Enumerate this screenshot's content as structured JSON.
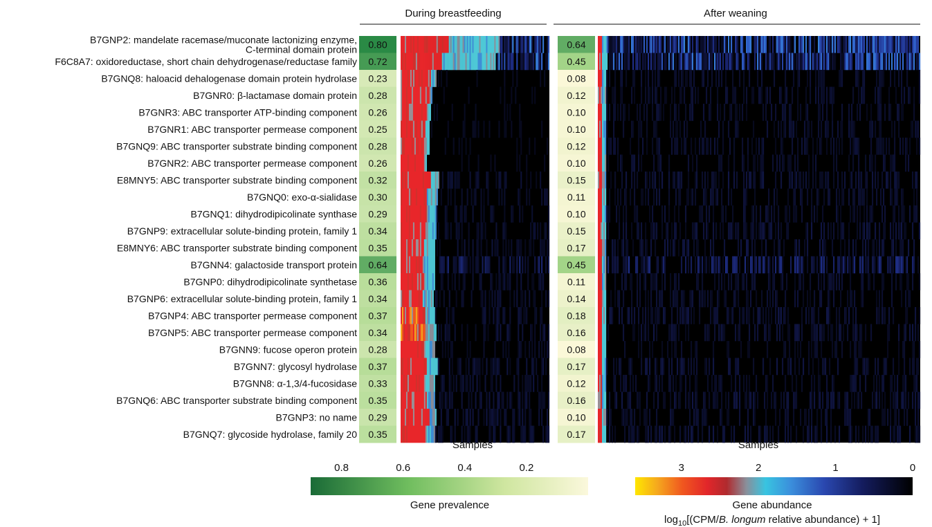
{
  "chart_data": {
    "type": "heatmap",
    "panels": [
      {
        "title": "During breastfeeding",
        "xlabel": "Samples"
      },
      {
        "title": "After weaning",
        "xlabel": "Samples"
      }
    ],
    "genes": [
      {
        "line1": "B7GNP2: mandelate racemase/muconate lactonizing enzyme,",
        "line2": "C-terminal domain protein"
      },
      {
        "line1": "F6C8A7: oxidoreductase, short chain dehydrogenase/reductase family"
      },
      {
        "line1": "B7GNQ8: haloacid dehalogenase domain protein hydrolase"
      },
      {
        "line1": "B7GNR0: β-lactamase domain protein"
      },
      {
        "line1": "B7GNR3: ABC transporter ATP-binding component"
      },
      {
        "line1": "B7GNR1: ABC transporter permease component"
      },
      {
        "line1": "B7GNQ9: ABC transporter substrate binding component"
      },
      {
        "line1": "B7GNR2: ABC transporter permease component"
      },
      {
        "line1": "E8MNY5: ABC transporter substrate binding component"
      },
      {
        "line1": "B7GNQ0: exo-α-sialidase"
      },
      {
        "line1": "B7GNQ1: dihydrodipicolinate synthase"
      },
      {
        "line1": "B7GNP9: extracellular solute-binding protein, family 1"
      },
      {
        "line1": "E8MNY6: ABC transporter substrate binding component"
      },
      {
        "line1": "B7GNN4: galactoside transport protein"
      },
      {
        "line1": "B7GNP0: dihydrodipicolinate synthetase"
      },
      {
        "line1": "B7GNP6: extracellular solute-binding protein, family 1"
      },
      {
        "line1": "B7GNP4: ABC transporter permease component"
      },
      {
        "line1": "B7GNP5: ABC transporter permease component"
      },
      {
        "line1": "B7GNN9: fucose operon protein"
      },
      {
        "line1": "B7GNN7: glycosyl hydrolase"
      },
      {
        "line1": "B7GNN8: α-1,3/4-fucosidase"
      },
      {
        "line1": "B7GNQ6: ABC transporter substrate binding component"
      },
      {
        "line1": "B7GNP3: no name"
      },
      {
        "line1": "B7GNQ7: glycoside hydrolase, family 20"
      }
    ],
    "prevalence_breastfeeding": [
      "0.80",
      "0.72",
      "0.23",
      "0.28",
      "0.26",
      "0.25",
      "0.28",
      "0.26",
      "0.32",
      "0.30",
      "0.29",
      "0.34",
      "0.35",
      "0.64",
      "0.36",
      "0.34",
      "0.37",
      "0.34",
      "0.28",
      "0.37",
      "0.33",
      "0.35",
      "0.29",
      "0.35"
    ],
    "prevalence_weaning": [
      "0.64",
      "0.45",
      "0.08",
      "0.12",
      "0.10",
      "0.10",
      "0.12",
      "0.10",
      "0.15",
      "0.11",
      "0.10",
      "0.15",
      "0.17",
      "0.45",
      "0.11",
      "0.14",
      "0.18",
      "0.16",
      "0.08",
      "0.17",
      "0.12",
      "0.16",
      "0.10",
      "0.17"
    ],
    "abundance_profile_breastfeeding": {
      "red_fraction": [
        0.32,
        0.28,
        0.2,
        0.19,
        0.18,
        0.17,
        0.17,
        0.16,
        0.2,
        0.18,
        0.18,
        0.17,
        0.16,
        0.15,
        0.16,
        0.15,
        0.17,
        0.17,
        0.17,
        0.18,
        0.17,
        0.18,
        0.19,
        0.17
      ],
      "cyan_fraction": [
        0.35,
        0.36,
        0.04,
        0.02,
        0.02,
        0.02,
        0.02,
        0.02,
        0.06,
        0.07,
        0.06,
        0.07,
        0.07,
        0.08,
        0.07,
        0.07,
        0.06,
        0.07,
        0.06,
        0.07,
        0.06,
        0.05,
        0.05,
        0.06
      ],
      "blue_level": [
        0.45,
        0.45,
        0.06,
        0.06,
        0.06,
        0.06,
        0.06,
        0.06,
        0.1,
        0.09,
        0.09,
        0.1,
        0.1,
        0.2,
        0.1,
        0.1,
        0.11,
        0.11,
        0.09,
        0.11,
        0.11,
        0.11,
        0.11,
        0.11
      ]
    },
    "abundance_profile_weaning": {
      "red_fraction": [
        0.012,
        0.012,
        0.012,
        0.012,
        0.012,
        0.012,
        0.012,
        0.012,
        0.012,
        0.012,
        0.012,
        0.012,
        0.012,
        0.012,
        0.012,
        0.012,
        0.012,
        0.012,
        0.012,
        0.012,
        0.012,
        0.012,
        0.012,
        0.012
      ],
      "cyan_fraction": [
        0.02,
        0.02,
        0.015,
        0.015,
        0.015,
        0.015,
        0.015,
        0.015,
        0.015,
        0.015,
        0.015,
        0.015,
        0.015,
        0.015,
        0.015,
        0.015,
        0.015,
        0.015,
        0.015,
        0.015,
        0.015,
        0.015,
        0.015,
        0.015
      ],
      "blue_level": [
        0.42,
        0.4,
        0.1,
        0.1,
        0.1,
        0.1,
        0.1,
        0.1,
        0.12,
        0.1,
        0.1,
        0.12,
        0.12,
        0.22,
        0.1,
        0.1,
        0.12,
        0.12,
        0.08,
        0.12,
        0.1,
        0.12,
        0.1,
        0.12
      ]
    },
    "prevalence_legend": {
      "ticks": [
        "0.8",
        "0.6",
        "0.4",
        "0.2"
      ],
      "tick_values": [
        0.8,
        0.6,
        0.4,
        0.2
      ],
      "range": [
        0.9,
        0.0
      ],
      "title": "Gene prevalence"
    },
    "abundance_legend": {
      "ticks": [
        "3",
        "2",
        "1",
        "0"
      ],
      "tick_values": [
        3,
        2,
        1,
        0
      ],
      "range": [
        3.6,
        0
      ],
      "title": "Gene abundance",
      "unit_parts": {
        "pre": "log",
        "sub": "10",
        "mid": "[(CPM/",
        "italic": "B. longum",
        "post": " relative abundance) + 1]"
      }
    },
    "colors": {
      "prev_high": "#1f7a3e",
      "prev_mid": "#8ccb6e",
      "prev_low": "#fbf8d8",
      "abundance_stops": [
        "#000000",
        "#14184f",
        "#2a3fa8",
        "#3f7fd6",
        "#38b6e6",
        "#4ec8d6",
        "#8a8f9a",
        "#c4282a",
        "#e8262a",
        "#f0571f",
        "#f5a81e",
        "#ffe600"
      ]
    }
  }
}
